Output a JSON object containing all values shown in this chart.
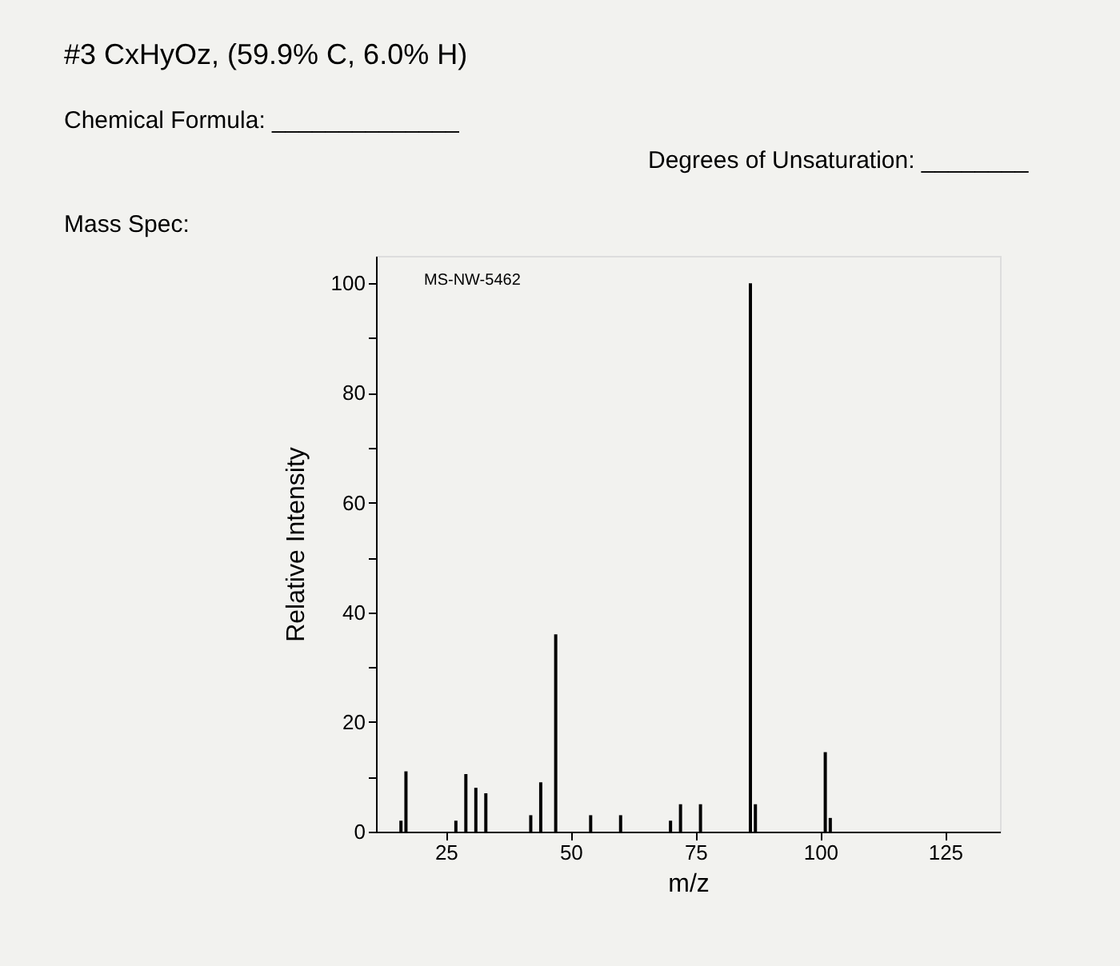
{
  "chart_data": {
    "type": "bar",
    "title": "#3 CxHyOz, (59.9% C, 6.0% H)",
    "annotations": [
      "Chemical Formula: ______________",
      "Degrees of Unsaturation: ________",
      "Mass Spec:",
      "MS-NW-5462"
    ],
    "xlabel": "m/z",
    "ylabel": "Relative Intensity",
    "x": [
      16,
      17,
      27,
      29,
      31,
      33,
      42,
      44,
      47,
      54,
      60,
      70,
      72,
      76,
      86,
      87,
      101,
      102
    ],
    "values": [
      2,
      11,
      2,
      10.5,
      8,
      7,
      3,
      9,
      36,
      3,
      3,
      2,
      5,
      5,
      100,
      5,
      14.5,
      2.5
    ],
    "color": "#000000",
    "xlim": [
      11,
      136
    ],
    "xticks": [
      25,
      50,
      75,
      100,
      125
    ],
    "ylim": [
      0,
      105
    ],
    "yticks": [
      0,
      {
        "value": 10,
        "label": null
      },
      20,
      {
        "value": 30,
        "label": null
      },
      40,
      {
        "value": 50,
        "label": null
      },
      60,
      {
        "value": 70,
        "label": null
      },
      80,
      {
        "value": 90,
        "label": null
      },
      100
    ],
    "grid": false
  }
}
